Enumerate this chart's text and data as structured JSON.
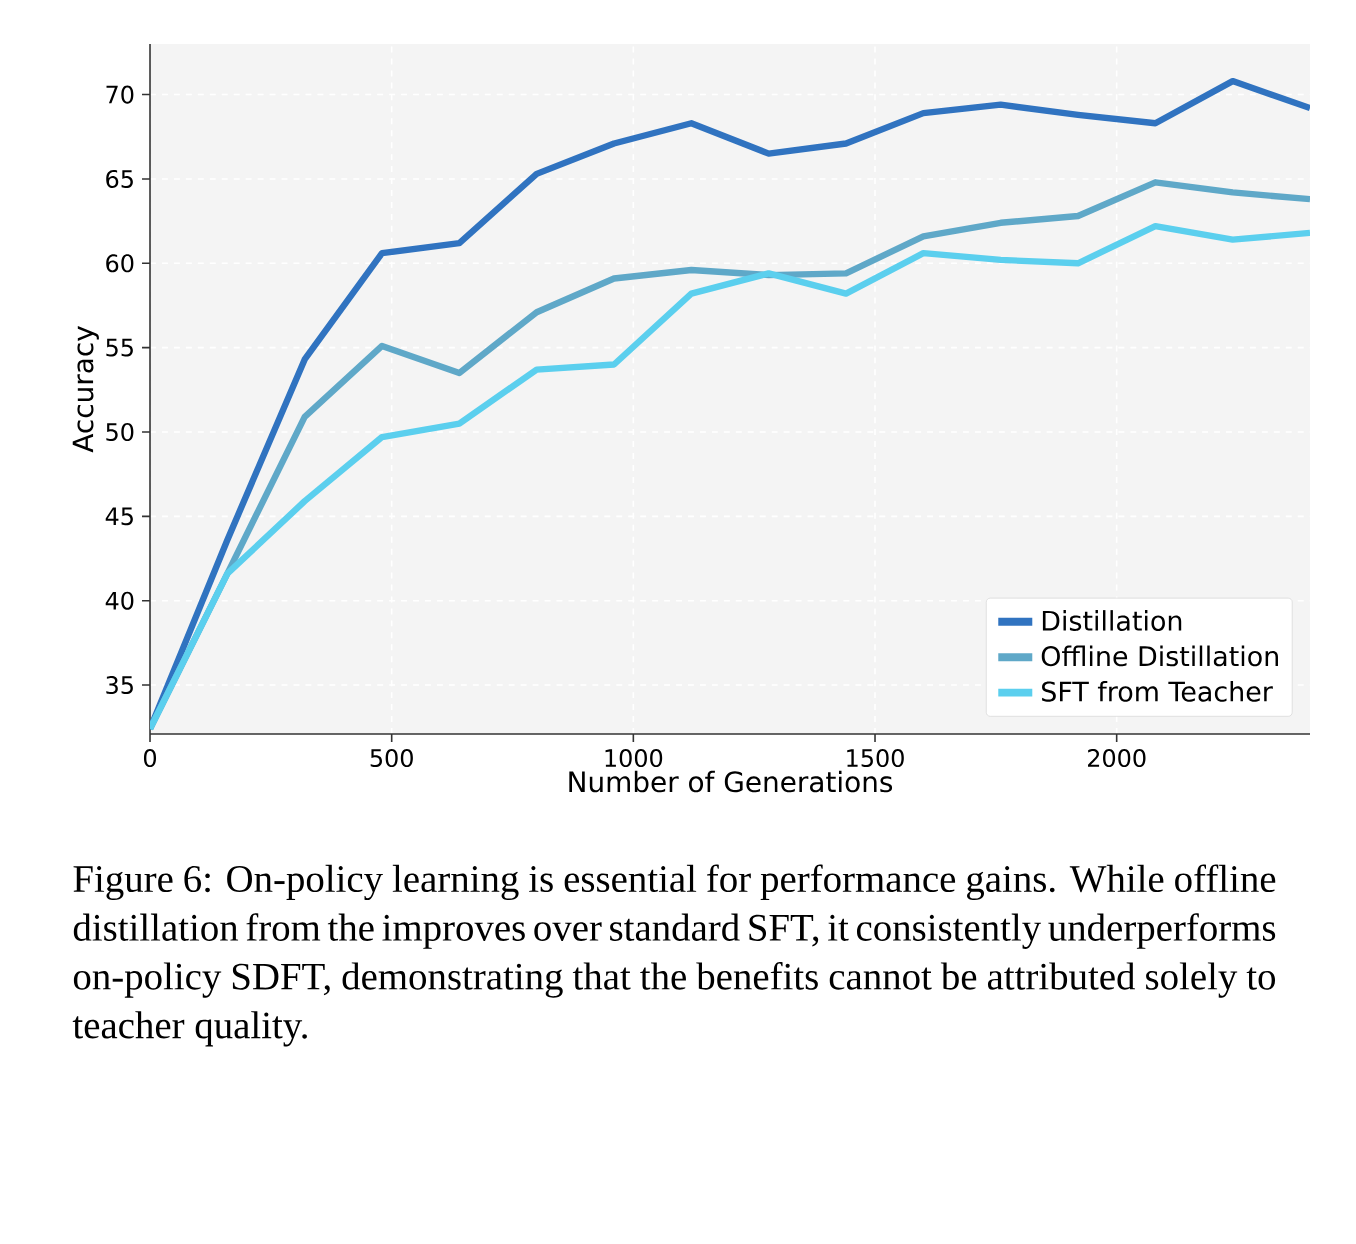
{
  "chart_data": {
    "type": "line",
    "xlabel": "Number of Generations",
    "ylabel": "Accuracy",
    "x": [
      0,
      160,
      320,
      480,
      640,
      800,
      960,
      1120,
      1280,
      1440,
      1600,
      1760,
      1920,
      2080,
      2240,
      2400
    ],
    "series": [
      {
        "name": "Distillation",
        "color": "#3073c0",
        "values": [
          32.4,
          43.6,
          54.3,
          60.6,
          61.2,
          65.3,
          67.1,
          68.3,
          66.5,
          67.1,
          68.9,
          69.4,
          68.8,
          68.3,
          70.8,
          69.2
        ]
      },
      {
        "name": "Offline Distillation",
        "color": "#5fa8c8",
        "values": [
          32.4,
          41.6,
          50.9,
          55.1,
          53.5,
          57.1,
          59.1,
          59.6,
          59.3,
          59.4,
          61.6,
          62.4,
          62.8,
          64.8,
          64.2,
          63.8
        ]
      },
      {
        "name": "SFT from Teacher",
        "color": "#5bcfee",
        "values": [
          32.4,
          41.6,
          45.9,
          49.7,
          50.5,
          53.7,
          54.0,
          58.2,
          59.4,
          58.2,
          60.6,
          60.2,
          60.0,
          62.2,
          61.4,
          61.8
        ]
      }
    ],
    "xlim": [
      0,
      2400
    ],
    "ylim": [
      32.1,
      73
    ],
    "xticks": [
      0,
      500,
      1000,
      1500,
      2000
    ],
    "yticks": [
      35,
      40,
      45,
      50,
      55,
      60,
      65,
      70
    ],
    "grid": true,
    "legend": "bottom right",
    "line_style": "solid",
    "annotations": [
      "Figure 6: On-policy learning is essential for performance gains. While offline distillation from the improves over standard SFT, it consistently underperforms on-policy SDFT, demonstrating that the benefits cannot be attributed solely to teacher quality."
    ]
  }
}
